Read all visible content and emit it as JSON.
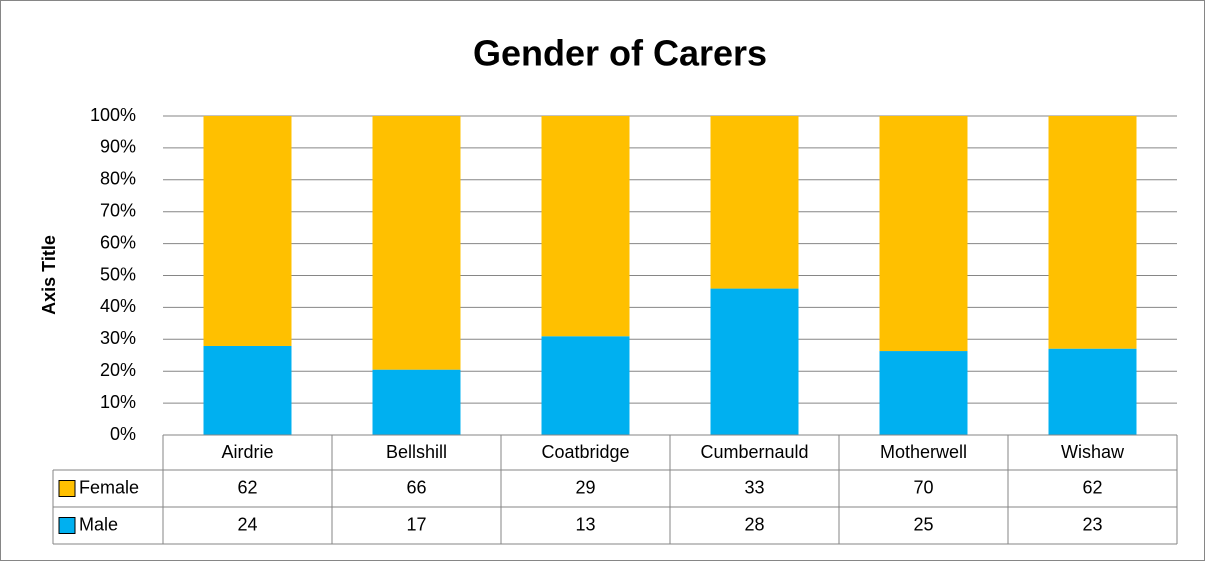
{
  "chart_data": {
    "type": "bar",
    "stacking": "percent",
    "title": "Gender of Carers",
    "y_label": "Axis Title",
    "categories": [
      "Airdrie",
      "Bellshill",
      "Coatbridge",
      "Cumbernauld",
      "Motherwell",
      "Wishaw"
    ],
    "series": [
      {
        "name": "Female",
        "color": "#ffc000",
        "values": [
          62,
          66,
          29,
          33,
          70,
          62
        ]
      },
      {
        "name": "Male",
        "color": "#00b0f0",
        "values": [
          24,
          17,
          13,
          28,
          25,
          23
        ]
      }
    ],
    "ylim": [
      0,
      100
    ],
    "yticks": [
      {
        "value": 0,
        "label": "0%"
      },
      {
        "value": 10,
        "label": "10%"
      },
      {
        "value": 20,
        "label": "20%"
      },
      {
        "value": 30,
        "label": "30%"
      },
      {
        "value": 40,
        "label": "40%"
      },
      {
        "value": 50,
        "label": "50%"
      },
      {
        "value": 60,
        "label": "60%"
      },
      {
        "value": 70,
        "label": "70%"
      },
      {
        "value": 80,
        "label": "80%"
      },
      {
        "value": 90,
        "label": "90%"
      },
      {
        "value": 100,
        "label": "100%"
      }
    ],
    "grid": true,
    "data_table": true
  }
}
